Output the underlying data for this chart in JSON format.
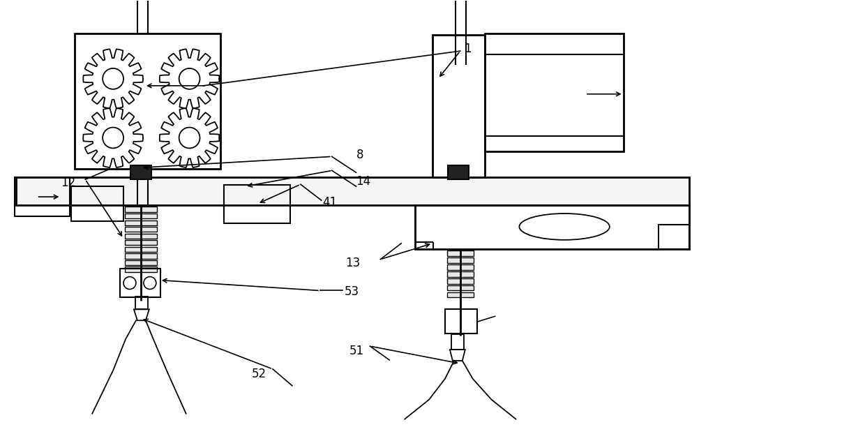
{
  "bg_color": "#ffffff",
  "lc": "#000000",
  "lw": 1.5,
  "tlw": 2.0,
  "fig_w": 12.4,
  "fig_h": 6.12,
  "dpi": 100
}
